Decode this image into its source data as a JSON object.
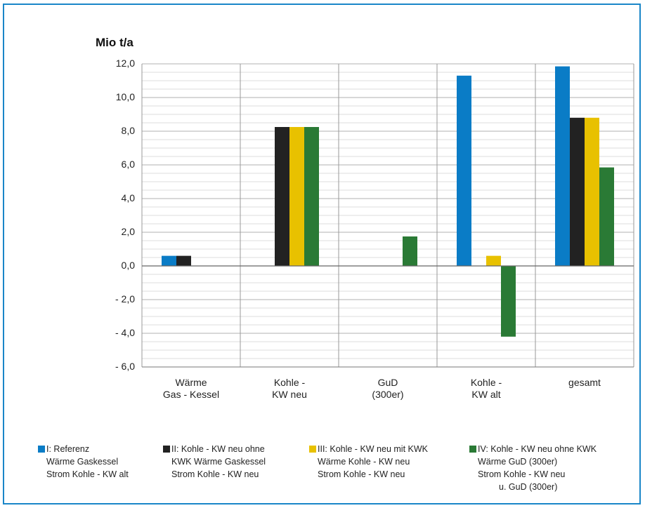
{
  "colors": {
    "frame": "#1a86c8",
    "series": [
      "#0a7cc6",
      "#222222",
      "#e8c100",
      "#2a7a35"
    ],
    "grid": "#c8c8c8",
    "axis": "#777777"
  },
  "chart_data": {
    "type": "bar",
    "ylabel": "Mio t/a",
    "ylim": [
      -6,
      12
    ],
    "yticks": [
      "12,0",
      "10,0",
      "8,0",
      "6,0",
      "4,0",
      "2,0",
      "0,0",
      "- 2,0",
      "- 4,0",
      "- 6,0"
    ],
    "ytick_values": [
      12,
      10,
      8,
      6,
      4,
      2,
      0,
      -2,
      -4,
      -6
    ],
    "categories": [
      "Wärme\nGas - Kessel",
      "Kohle -\nKW neu",
      "GuD\n(300er)",
      "Kohle -\nKW alt",
      "gesamt"
    ],
    "series": [
      {
        "name": "I: Referenz\nWärme Gaskessel\nStrom Kohle - KW alt",
        "values": [
          0.6,
          0,
          0,
          11.3,
          11.85
        ]
      },
      {
        "name": "II: Kohle - KW neu ohne\nKWK Wärme Gaskessel\nStrom Kohle - KW neu",
        "values": [
          0.6,
          8.25,
          0,
          0,
          8.8
        ]
      },
      {
        "name": "III: Kohle - KW neu mit KWK\nWärme Kohle - KW neu\nStrom Kohle - KW neu",
        "values": [
          0,
          8.25,
          0,
          0.6,
          8.8
        ]
      },
      {
        "name": "IV: Kohle - KW neu ohne KWK\nWärme GuD (300er)\nStrom Kohle - KW neu\nu. GuD (300er)",
        "values": [
          0,
          8.25,
          1.75,
          -4.2,
          5.85
        ]
      }
    ],
    "grid": true,
    "legend_position": "bottom"
  }
}
